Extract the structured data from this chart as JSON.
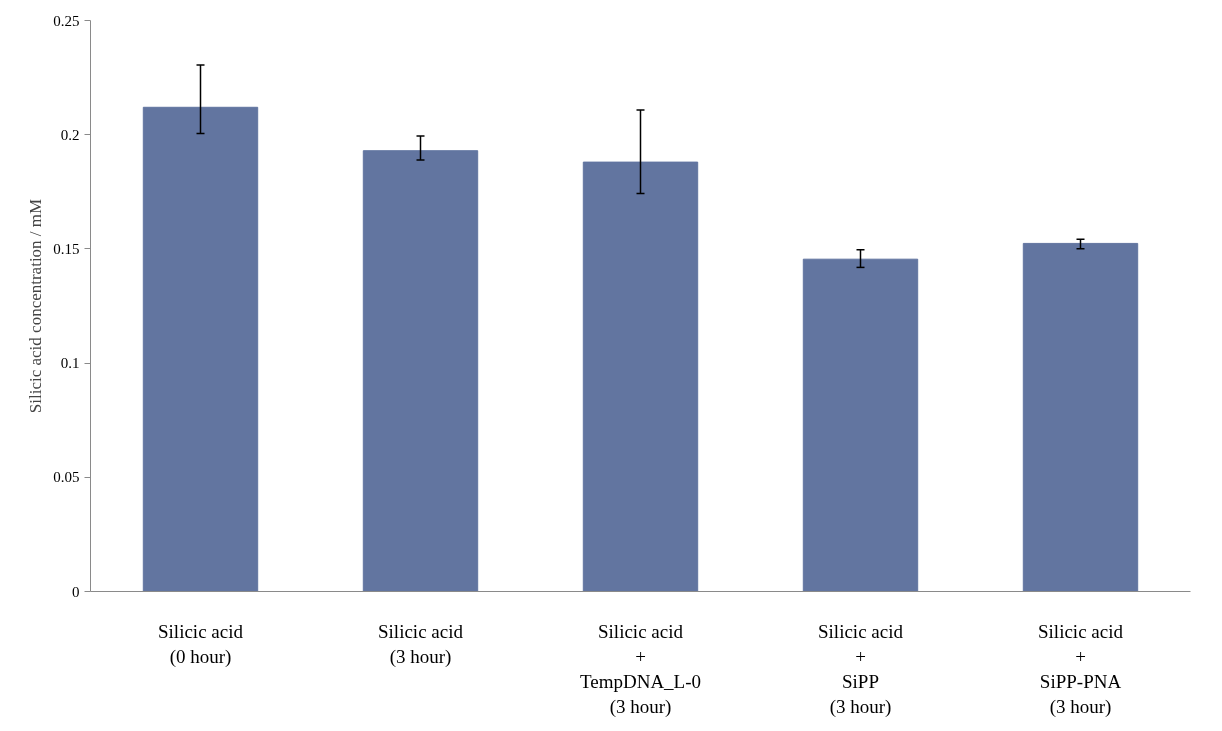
{
  "chart_data": {
    "type": "bar",
    "ylabel": "Silicic acid concentration / mM",
    "categories": [
      "Silicic acid\n(0 hour)",
      "Silicic acid\n(3 hour)",
      "Silicic acid\n+\nTempDNA_L-0\n(3 hour)",
      "Silicic acid\n+\nSiPP\n(3 hour)",
      "Silicic acid\n+\nSiPP-PNA\n(3 hour)"
    ],
    "values": [
      0.212,
      0.193,
      0.188,
      0.1455,
      0.1524
    ],
    "errors": [
      [
        0.2005,
        0.2305
      ],
      [
        0.1889,
        0.1994
      ],
      [
        0.1743,
        0.2108
      ],
      [
        0.1419,
        0.1496
      ],
      [
        0.1501,
        0.1542
      ]
    ],
    "color": "#6275a0",
    "ylim": [
      0,
      0.25
    ],
    "yticks": [
      0,
      0.05,
      0.1,
      0.15,
      0.2,
      0.25
    ],
    "grid": false
  }
}
